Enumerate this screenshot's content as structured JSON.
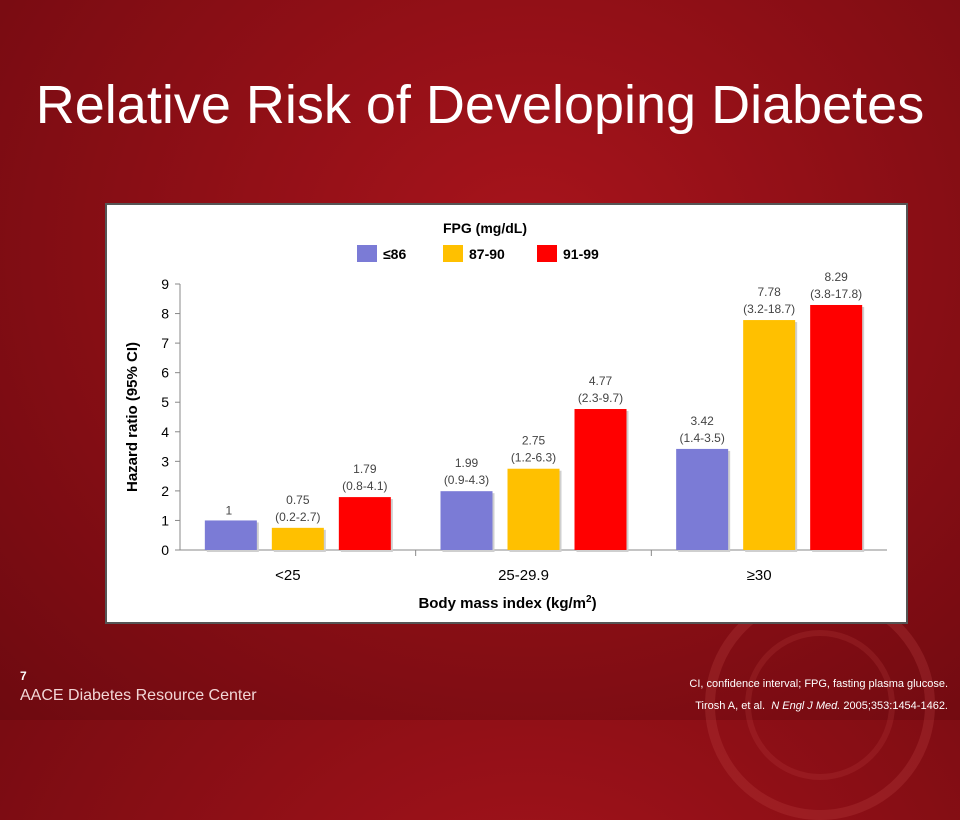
{
  "slide": {
    "title": "Relative Risk of Developing Diabetes",
    "slide_number": "7",
    "footer_org": "AACE Diabetes Resource Center",
    "footnote": "CI, confidence interval; FPG, fasting plasma glucose.",
    "citation": {
      "authors": "Tirosh A, et al.",
      "journal": "N Engl J Med.",
      "details": "2005;353:1454-1462."
    }
  },
  "colors": {
    "background": "#8e0f16",
    "series": [
      "#7b7bd6",
      "#ffc000",
      "#ff0000"
    ]
  },
  "chart_data": {
    "type": "bar",
    "legend": {
      "title": "FPG (mg/dL)",
      "placement": "top"
    },
    "categories": [
      "<25",
      "25-29.9",
      "≥30"
    ],
    "series": [
      {
        "name": "≤86",
        "values": [
          1,
          1.99,
          3.42
        ],
        "ci_labels": [
          "",
          "(0.9-4.3)",
          "(1.4-3.5)"
        ]
      },
      {
        "name": "87-90",
        "values": [
          0.75,
          2.75,
          7.78
        ],
        "ci_labels": [
          "(0.2-2.7)",
          "(1.2-6.3)",
          "(3.2-18.7)"
        ]
      },
      {
        "name": "91-99",
        "values": [
          1.79,
          4.77,
          8.29
        ],
        "ci_labels": [
          "(0.8-4.1)",
          "(2.3-9.7)",
          "(3.8-17.8)"
        ]
      }
    ],
    "value_labels": [
      [
        "1",
        "1.99",
        "3.42"
      ],
      [
        "0.75",
        "2.75",
        "7.78"
      ],
      [
        "1.79",
        "4.77",
        "8.29"
      ]
    ],
    "xlabel": "Body mass index (kg/m",
    "xlabel_sup": "2",
    "xlabel_close": ")",
    "ylabel": "Hazard ratio (95% CI)",
    "ylim": [
      0,
      9
    ],
    "yticks": [
      0,
      1,
      2,
      3,
      4,
      5,
      6,
      7,
      8,
      9
    ],
    "grid": false
  }
}
